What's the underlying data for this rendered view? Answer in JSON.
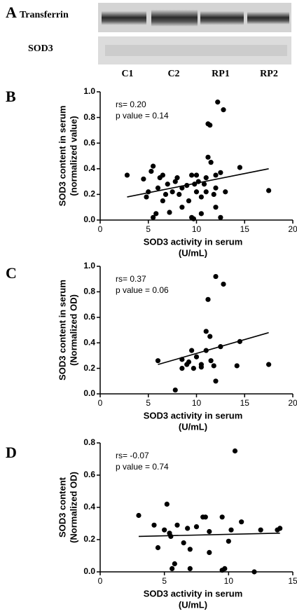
{
  "panel_a": {
    "label": "A",
    "bands": [
      "Transferrin",
      "SOD3"
    ],
    "lanes": [
      "C1",
      "C2",
      "RP1",
      "RP2"
    ]
  },
  "chart_data": [
    {
      "type": "scatter",
      "panel": "B",
      "annotations": [
        "rs= 0.20",
        "p value = 0.14"
      ],
      "xlabel": [
        "SOD3 activity in serum",
        "(U/mL)"
      ],
      "ylabel": [
        "SOD3 content in serum",
        "(normalized value)"
      ],
      "xlim": [
        0,
        20
      ],
      "xticks": [
        0,
        5,
        10,
        15,
        20
      ],
      "ylim": [
        0,
        1
      ],
      "yticks": [
        {
          "value": 0,
          "label": "0.0"
        },
        0.2,
        0.4,
        0.6,
        0.8,
        {
          "value": 1,
          "label": "1.0"
        }
      ],
      "color": "#000000",
      "x": [
        2.8,
        4.5,
        5.0,
        5.3,
        5.5,
        5.5,
        5.8,
        6.0,
        6.2,
        6.5,
        6.8,
        7.0,
        7.2,
        7.5,
        7.8,
        8.0,
        8.2,
        8.5,
        8.5,
        9.0,
        9.2,
        9.5,
        9.5,
        9.7,
        10.0,
        10.0,
        10.2,
        10.5,
        10.5,
        10.8,
        11.0,
        11.0,
        11.2,
        11.2,
        11.4,
        11.5,
        11.8,
        12.0,
        12.0,
        12.2,
        12.5,
        12.5,
        12.8,
        12.0,
        13.0,
        14.5,
        17.5,
        4.8,
        6.5,
        9.8
      ],
      "values": [
        0.35,
        0.32,
        0.22,
        0.38,
        0.42,
        0.02,
        0.05,
        0.25,
        0.33,
        0.15,
        0.2,
        0.28,
        0.06,
        0.22,
        0.3,
        0.33,
        0.2,
        0.25,
        0.1,
        0.27,
        0.15,
        0.35,
        0.02,
        0.01,
        0.22,
        0.35,
        0.3,
        0.18,
        0.05,
        0.28,
        0.33,
        0.22,
        0.49,
        0.75,
        0.74,
        0.45,
        0.2,
        0.35,
        0.1,
        0.92,
        0.37,
        0.02,
        0.86,
        0.25,
        0.22,
        0.41,
        0.23,
        0.18,
        0.35,
        0.28
      ],
      "trendline": {
        "x": [
          2.8,
          17.5
        ],
        "values": [
          0.18,
          0.4
        ]
      }
    },
    {
      "type": "scatter",
      "panel": "C",
      "annotations": [
        "rs= 0.37",
        "p value = 0.06"
      ],
      "xlabel": [
        "SOD3 activity in serum",
        "(U/mL)"
      ],
      "ylabel": [
        "SOD3 content in serum",
        "(Normalized OD)"
      ],
      "xlim": [
        0,
        20
      ],
      "xticks": [
        0,
        5,
        10,
        15,
        20
      ],
      "ylim": [
        0,
        1
      ],
      "yticks": [
        {
          "value": 0,
          "label": "0.0"
        },
        0.2,
        0.4,
        0.6,
        0.8,
        {
          "value": 1,
          "label": "1.0"
        }
      ],
      "color": "#000000",
      "x": [
        6.0,
        7.8,
        8.5,
        8.5,
        9.0,
        9.2,
        9.5,
        9.7,
        10.0,
        10.5,
        10.5,
        11.0,
        11.0,
        11.2,
        11.4,
        11.5,
        11.8,
        12.0,
        12.0,
        12.5,
        12.8,
        14.5,
        14.2,
        17.5
      ],
      "values": [
        0.26,
        0.03,
        0.27,
        0.2,
        0.23,
        0.25,
        0.34,
        0.2,
        0.29,
        0.23,
        0.21,
        0.34,
        0.49,
        0.74,
        0.45,
        0.26,
        0.22,
        0.92,
        0.1,
        0.37,
        0.86,
        0.41,
        0.22,
        0.23
      ],
      "trendline": {
        "x": [
          6,
          17.5
        ],
        "values": [
          0.23,
          0.48
        ]
      }
    },
    {
      "type": "scatter",
      "panel": "D",
      "annotations": [
        "rs= -0.07",
        "p value = 0.74"
      ],
      "xlabel": [
        "SOD3 activity in serum",
        "(U/mL)"
      ],
      "ylabel": [
        "SOD3 content",
        "(Normalized OD)"
      ],
      "xlim": [
        0,
        15
      ],
      "xticks": [
        0,
        5,
        10,
        15
      ],
      "ylim": [
        0,
        0.8
      ],
      "yticks": [
        {
          "value": 0,
          "label": "0.0"
        },
        0.2,
        0.4,
        0.6,
        0.8
      ],
      "color": "#000000",
      "x": [
        3.0,
        4.2,
        4.5,
        5.0,
        5.2,
        5.4,
        5.5,
        5.6,
        5.8,
        6.0,
        6.5,
        6.8,
        7.0,
        7.0,
        7.5,
        8.0,
        8.2,
        8.5,
        8.5,
        9.5,
        9.5,
        9.7,
        10.0,
        10.2,
        10.5,
        11.0,
        12.0,
        12.5,
        13.8,
        14.0
      ],
      "values": [
        0.35,
        0.29,
        0.15,
        0.26,
        0.42,
        0.24,
        0.22,
        0.02,
        0.05,
        0.29,
        0.18,
        0.27,
        0.14,
        0.02,
        0.28,
        0.34,
        0.34,
        0.25,
        0.12,
        0.34,
        0.01,
        0.02,
        0.19,
        0.26,
        0.75,
        0.31,
        0.0,
        0.26,
        0.26,
        0.27
      ],
      "trendline": {
        "x": [
          3,
          14
        ],
        "values": [
          0.22,
          0.24
        ]
      }
    }
  ]
}
